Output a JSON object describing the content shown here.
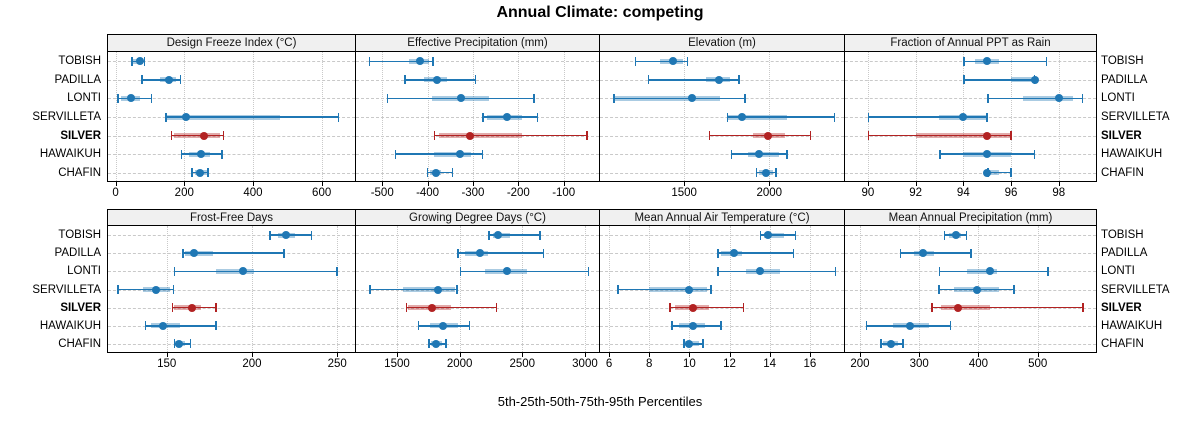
{
  "title": "Annual Climate: competing",
  "caption": "5th-25th-50th-75th-95th Percentiles",
  "sites": [
    "TOBISH",
    "PADILLA",
    "LONTI",
    "SERVILLETA",
    "SILVER",
    "HAWAIKUH",
    "CHAFIN"
  ],
  "highlight_site": "SILVER",
  "colors": {
    "normal": "#1f77b4",
    "highlight": "#b22222",
    "strip_bg": "#f0f0f0",
    "grid": "#c9c9c9",
    "border": "#000000"
  },
  "chart_data": {
    "type": "dotplot-interval",
    "percentiles": [
      "5th",
      "25th",
      "50th",
      "75th",
      "95th"
    ],
    "legend_position": "none",
    "grid": "on",
    "panels": [
      {
        "slug": "design-freeze-index",
        "title": "Design Freeze Index (°C)",
        "row": 0,
        "col": 0,
        "xlim": [
          -25,
          700
        ],
        "ticks": [
          0,
          200,
          400,
          600
        ],
        "series": [
          {
            "name": "TOBISH",
            "values": [
              45,
              52,
              70,
              80,
              85
            ]
          },
          {
            "name": "PADILLA",
            "values": [
              75,
              130,
              155,
              175,
              190
            ]
          },
          {
            "name": "LONTI",
            "values": [
              5,
              15,
              45,
              70,
              105
            ]
          },
          {
            "name": "SERVILLETA",
            "values": [
              145,
              150,
              205,
              480,
              650
            ]
          },
          {
            "name": "SILVER",
            "values": [
              160,
              170,
              258,
              305,
              315
            ]
          },
          {
            "name": "HAWAIKUH",
            "values": [
              190,
              215,
              250,
              275,
              310
            ]
          },
          {
            "name": "CHAFIN",
            "values": [
              220,
              230,
              245,
              265,
              270
            ]
          }
        ]
      },
      {
        "slug": "effective-precipitation",
        "title": "Effective Precipitation (mm)",
        "row": 0,
        "col": 1,
        "xlim": [
          -560,
          -20
        ],
        "ticks": [
          -500,
          -400,
          -300,
          -200,
          -100
        ],
        "series": [
          {
            "name": "TOBISH",
            "values": [
              -530,
              -440,
              -417,
              -396,
              -388
            ]
          },
          {
            "name": "PADILLA",
            "values": [
              -452,
              -408,
              -379,
              -357,
              -294
            ]
          },
          {
            "name": "LONTI",
            "values": [
              -490,
              -390,
              -326,
              -265,
              -165
            ]
          },
          {
            "name": "SERVILLETA",
            "values": [
              -280,
              -268,
              -224,
              -191,
              -157
            ]
          },
          {
            "name": "SILVER",
            "values": [
              -386,
              -375,
              -307,
              -191,
              -48
            ]
          },
          {
            "name": "HAWAIKUH",
            "values": [
              -472,
              -386,
              -329,
              -304,
              -278
            ]
          },
          {
            "name": "CHAFIN",
            "values": [
              -402,
              -395,
              -382,
              -371,
              -345
            ]
          }
        ]
      },
      {
        "slug": "elevation",
        "title": "Elevation (m)",
        "row": 0,
        "col": 2,
        "xlim": [
          1000,
          2445
        ],
        "ticks": [
          1500,
          2000
        ],
        "series": [
          {
            "name": "TOBISH",
            "values": [
              1210,
              1360,
              1435,
              1495,
              1520
            ]
          },
          {
            "name": "PADILLA",
            "values": [
              1285,
              1630,
              1705,
              1770,
              1825
            ]
          },
          {
            "name": "LONTI",
            "values": [
              1085,
              1095,
              1545,
              1710,
              1860
            ]
          },
          {
            "name": "SERVILLETA",
            "values": [
              1750,
              1760,
              1840,
              2105,
              2385
            ]
          },
          {
            "name": "SILVER",
            "values": [
              1645,
              1905,
              1990,
              2095,
              2245
            ]
          },
          {
            "name": "HAWAIKUH",
            "values": [
              1775,
              1875,
              1940,
              2055,
              2105
            ]
          },
          {
            "name": "CHAFIN",
            "values": [
              1920,
              1940,
              1980,
              2020,
              2040
            ]
          }
        ]
      },
      {
        "slug": "fraction-annual-ppt-rain",
        "title": "Fraction of Annual PPT as Rain",
        "row": 0,
        "col": 3,
        "xlim": [
          89,
          99.6
        ],
        "ticks": [
          90,
          92,
          94,
          96,
          98
        ],
        "series": [
          {
            "name": "TOBISH",
            "values": [
              94,
              94.5,
              95,
              95.5,
              97.5
            ]
          },
          {
            "name": "PADILLA",
            "values": [
              94,
              96,
              97,
              97,
              97
            ]
          },
          {
            "name": "LONTI",
            "values": [
              95,
              96.5,
              98,
              98.6,
              99
            ]
          },
          {
            "name": "SERVILLETA",
            "values": [
              90,
              93,
              94,
              95,
              95
            ]
          },
          {
            "name": "SILVER",
            "values": [
              90,
              92,
              95,
              96,
              96
            ]
          },
          {
            "name": "HAWAIKUH",
            "values": [
              93,
              94,
              95,
              96,
              97
            ]
          },
          {
            "name": "CHAFIN",
            "values": [
              95,
              95,
              95,
              95.5,
              96
            ]
          }
        ]
      },
      {
        "slug": "frost-free-days",
        "title": "Frost-Free Days",
        "row": 1,
        "col": 0,
        "xlim": [
          115,
          261
        ],
        "ticks": [
          150,
          200,
          250
        ],
        "series": [
          {
            "name": "TOBISH",
            "values": [
              210,
              215,
              220,
              225,
              235
            ]
          },
          {
            "name": "PADILLA",
            "values": [
              159,
              161,
              166,
              177,
              219
            ]
          },
          {
            "name": "LONTI",
            "values": [
              154,
              179,
              195,
              201,
              250
            ]
          },
          {
            "name": "SERVILLETA",
            "values": [
              121,
              136,
              144,
              152,
              154
            ]
          },
          {
            "name": "SILVER",
            "values": [
              153,
              154,
              165,
              170,
              179
            ]
          },
          {
            "name": "HAWAIKUH",
            "values": [
              137,
              141,
              148,
              158,
              179
            ]
          },
          {
            "name": "CHAFIN",
            "values": [
              154,
              155,
              157,
              161,
              164
            ]
          }
        ]
      },
      {
        "slug": "growing-degree-days",
        "title": "Growing Degree Days (°C)",
        "row": 1,
        "col": 1,
        "xlim": [
          1165,
          3120
        ],
        "ticks": [
          1500,
          2000,
          2500,
          3000
        ],
        "series": [
          {
            "name": "TOBISH",
            "values": [
              2230,
              2270,
              2310,
              2400,
              2645
            ]
          },
          {
            "name": "PADILLA",
            "values": [
              1980,
              2040,
              2160,
              2230,
              2670
            ]
          },
          {
            "name": "LONTI",
            "values": [
              2000,
              2200,
              2375,
              2535,
              3030
            ]
          },
          {
            "name": "SERVILLETA",
            "values": [
              1280,
              1545,
              1825,
              1960,
              1980
            ]
          },
          {
            "name": "SILVER",
            "values": [
              1570,
              1590,
              1780,
              1935,
              2295
            ]
          },
          {
            "name": "HAWAIKUH",
            "values": [
              1665,
              1760,
              1865,
              1985,
              2080
            ]
          },
          {
            "name": "CHAFIN",
            "values": [
              1750,
              1775,
              1815,
              1860,
              1895
            ]
          }
        ]
      },
      {
        "slug": "mean-annual-air-temperature",
        "title": "Mean Annual Air Temperature (°C)",
        "row": 1,
        "col": 2,
        "xlim": [
          5.5,
          17.75
        ],
        "ticks": [
          6,
          8,
          10,
          12,
          14,
          16
        ],
        "series": [
          {
            "name": "TOBISH",
            "values": [
              13.5,
              13.7,
              13.9,
              14.7,
              15.3
            ]
          },
          {
            "name": "PADILLA",
            "values": [
              11.4,
              11.6,
              12.2,
              12.6,
              15.2
            ]
          },
          {
            "name": "LONTI",
            "values": [
              11.4,
              12.8,
              13.5,
              14.5,
              17.3
            ]
          },
          {
            "name": "SERVILLETA",
            "values": [
              6.4,
              8.0,
              10.0,
              10.9,
              11.1
            ]
          },
          {
            "name": "SILVER",
            "values": [
              9.0,
              9.3,
              10.2,
              11.0,
              12.7
            ]
          },
          {
            "name": "HAWAIKUH",
            "values": [
              9.1,
              9.5,
              10.2,
              10.8,
              11.6
            ]
          },
          {
            "name": "CHAFIN",
            "values": [
              9.7,
              9.8,
              10.0,
              10.5,
              10.7
            ]
          }
        ]
      },
      {
        "slug": "mean-annual-precipitation",
        "title": "Mean Annual Precipitation (mm)",
        "row": 1,
        "col": 3,
        "xlim": [
          173,
          600
        ],
        "ticks": [
          200,
          300,
          400,
          500
        ],
        "series": [
          {
            "name": "TOBISH",
            "values": [
              341,
              350,
              362,
              370,
              380
            ]
          },
          {
            "name": "PADILLA",
            "values": [
              267,
              291,
              306,
              325,
              388
            ]
          },
          {
            "name": "LONTI",
            "values": [
              333,
              381,
              419,
              432,
              518
            ]
          },
          {
            "name": "SERVILLETA",
            "values": [
              332,
              359,
              398,
              435,
              460
            ]
          },
          {
            "name": "SILVER",
            "values": [
              320,
              336,
              366,
              420,
              577
            ]
          },
          {
            "name": "HAWAIKUH",
            "values": [
              210,
              255,
              284,
              316,
              353
            ]
          },
          {
            "name": "CHAFIN",
            "values": [
              234,
              239,
              252,
              264,
              273
            ]
          }
        ]
      }
    ]
  }
}
